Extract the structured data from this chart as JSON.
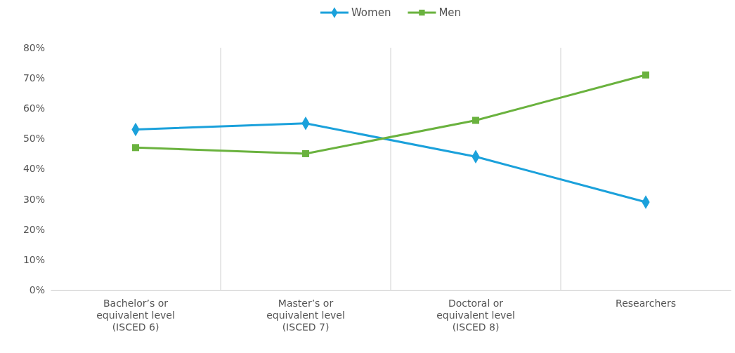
{
  "chart_data": {
    "type": "line",
    "categories": [
      "Bachelor’s or equivalent level (ISCED 6)",
      "Master’s or equivalent level (ISCED 7)",
      "Doctoral or equivalent level (ISCED 8)",
      "Researchers"
    ],
    "series": [
      {
        "name": "Women",
        "color": "#1ba1db",
        "marker": "diamond",
        "values": [
          53,
          55,
          44,
          29
        ]
      },
      {
        "name": "Men",
        "color": "#6ab23e",
        "marker": "square",
        "values": [
          47,
          45,
          56,
          71
        ]
      }
    ],
    "ylim": [
      0,
      80
    ],
    "yticks": [
      {
        "value": 0,
        "label": "0%"
      },
      {
        "value": 10,
        "label": "10%"
      },
      {
        "value": 20,
        "label": "20%"
      },
      {
        "value": 30,
        "label": "30%"
      },
      {
        "value": 40,
        "label": "40%"
      },
      {
        "value": 50,
        "label": "50%"
      },
      {
        "value": 60,
        "label": "60%"
      },
      {
        "value": 70,
        "label": "70%"
      },
      {
        "value": 80,
        "label": "80%"
      }
    ],
    "grid": "x",
    "legend": "top",
    "line_style": "solid"
  }
}
